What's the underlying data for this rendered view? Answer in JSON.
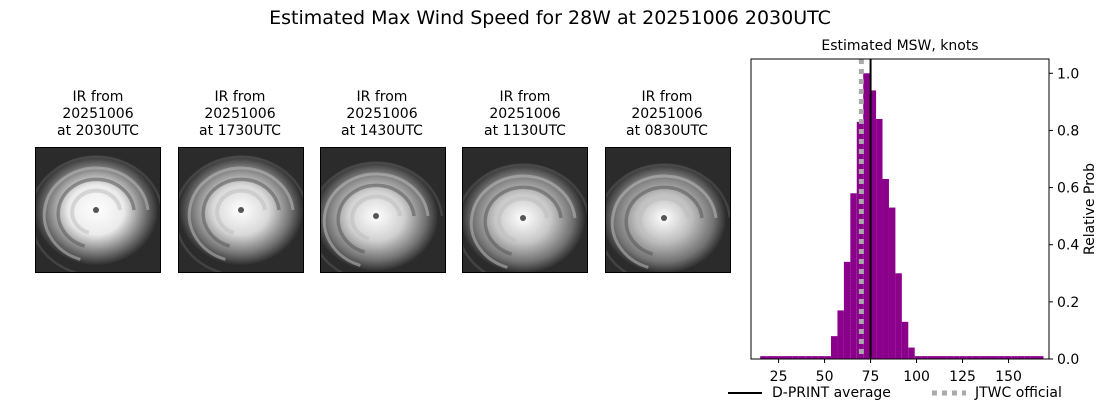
{
  "suptitle": "Estimated Max Wind Speed for 28W at 20251006 2030UTC",
  "ir_panels": [
    {
      "line1": "IR from",
      "line2": "20251006",
      "line3": "at 2030UTC"
    },
    {
      "line1": "IR from",
      "line2": "20251006",
      "line3": "at 1730UTC"
    },
    {
      "line1": "IR from",
      "line2": "20251006",
      "line3": "at 1430UTC"
    },
    {
      "line1": "IR from",
      "line2": "20251006",
      "line3": "at 1130UTC"
    },
    {
      "line1": "IR from",
      "line2": "20251006",
      "line3": "at 0830UTC"
    }
  ],
  "chart_data": {
    "type": "bar",
    "title": "Estimated MSW, knots",
    "xlabel": "",
    "ylabel": "Relative Prob",
    "xlim": [
      10,
      172
    ],
    "ylim": [
      0,
      1.05
    ],
    "xticks": [
      25,
      50,
      75,
      100,
      125,
      150
    ],
    "yticks": [
      0.0,
      0.2,
      0.4,
      0.6,
      0.8,
      1.0
    ],
    "ytick_labels": [
      "0.0",
      "0.2",
      "0.4",
      "0.6",
      "0.8",
      "1.0"
    ],
    "y_axis_side": "right",
    "bin_width": 3.5,
    "bins": [
      {
        "left": 15.0,
        "value": 0.01
      },
      {
        "left": 18.5,
        "value": 0.01
      },
      {
        "left": 22.0,
        "value": 0.01
      },
      {
        "left": 25.5,
        "value": 0.01
      },
      {
        "left": 29.0,
        "value": 0.01
      },
      {
        "left": 32.5,
        "value": 0.01
      },
      {
        "left": 36.0,
        "value": 0.01
      },
      {
        "left": 39.5,
        "value": 0.01
      },
      {
        "left": 43.0,
        "value": 0.01
      },
      {
        "left": 46.5,
        "value": 0.01
      },
      {
        "left": 50.0,
        "value": 0.01
      },
      {
        "left": 53.5,
        "value": 0.08
      },
      {
        "left": 57.0,
        "value": 0.17
      },
      {
        "left": 60.5,
        "value": 0.34
      },
      {
        "left": 64.0,
        "value": 0.58
      },
      {
        "left": 67.5,
        "value": 0.83
      },
      {
        "left": 71.0,
        "value": 1.0
      },
      {
        "left": 74.5,
        "value": 0.94
      },
      {
        "left": 78.0,
        "value": 0.84
      },
      {
        "left": 81.5,
        "value": 0.63
      },
      {
        "left": 85.0,
        "value": 0.53
      },
      {
        "left": 88.5,
        "value": 0.3
      },
      {
        "left": 92.0,
        "value": 0.13
      },
      {
        "left": 95.5,
        "value": 0.04
      },
      {
        "left": 99.0,
        "value": 0.01
      },
      {
        "left": 102.5,
        "value": 0.01
      },
      {
        "left": 106.0,
        "value": 0.01
      },
      {
        "left": 109.5,
        "value": 0.01
      },
      {
        "left": 113.0,
        "value": 0.01
      },
      {
        "left": 116.5,
        "value": 0.01
      },
      {
        "left": 120.0,
        "value": 0.01
      },
      {
        "left": 123.5,
        "value": 0.01
      },
      {
        "left": 127.0,
        "value": 0.01
      },
      {
        "left": 130.5,
        "value": 0.01
      },
      {
        "left": 134.0,
        "value": 0.01
      },
      {
        "left": 137.5,
        "value": 0.01
      },
      {
        "left": 141.0,
        "value": 0.01
      },
      {
        "left": 144.5,
        "value": 0.01
      },
      {
        "left": 148.0,
        "value": 0.01
      },
      {
        "left": 151.5,
        "value": 0.01
      },
      {
        "left": 155.0,
        "value": 0.01
      },
      {
        "left": 158.5,
        "value": 0.01
      },
      {
        "left": 162.0,
        "value": 0.01
      },
      {
        "left": 165.5,
        "value": 0.01
      }
    ],
    "bar_color": "#8b008b",
    "vlines": [
      {
        "name": "D-PRINT average",
        "x": 75,
        "color": "#000000",
        "style": "solid"
      },
      {
        "name": "JTWC official",
        "x": 70,
        "color": "#aaaaaa",
        "style": "dotted"
      }
    ],
    "legend": "bottom"
  }
}
